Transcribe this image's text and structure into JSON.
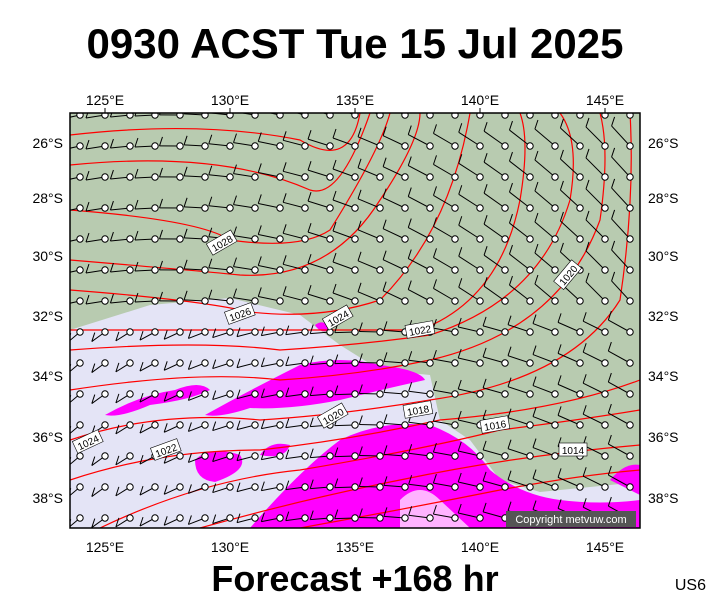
{
  "header": {
    "title": "0930 ACST Tue 15 Jul 2025"
  },
  "map": {
    "lon_labels": [
      "125°E",
      "130°E",
      "135°E",
      "140°E",
      "145°E"
    ],
    "lat_labels": [
      "26°S",
      "28°S",
      "30°S",
      "32°S",
      "34°S",
      "36°S",
      "38°S"
    ],
    "isobar_labels": [
      "1028",
      "1026",
      "1024",
      "1022",
      "1020",
      "1020",
      "1018",
      "1016",
      "1014",
      "1024",
      "1022"
    ],
    "copyright": "Copyright metvuw.com"
  },
  "footer": {
    "forecast": "Forecast +168 hr",
    "code": "US6"
  }
}
